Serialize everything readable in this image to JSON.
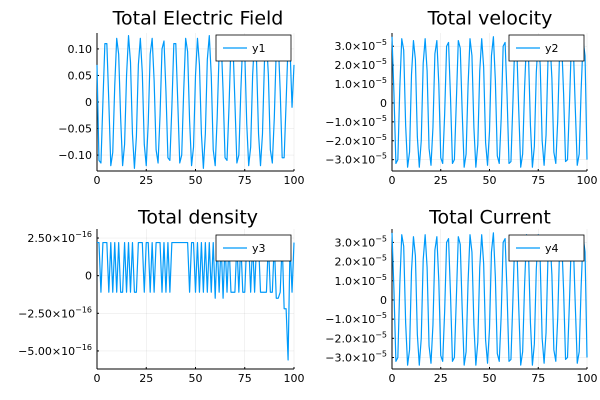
{
  "chart_data": [
    {
      "type": "line",
      "title": "Total Electric Field",
      "xlabel": "",
      "ylabel": "",
      "xlim": [
        0,
        100
      ],
      "ylim": [
        -0.13,
        0.13
      ],
      "xticks": [
        0,
        25,
        50,
        75,
        100
      ],
      "xtick_labels": [
        "0",
        "25",
        "50",
        "75",
        "100"
      ],
      "yticks": [
        0.1,
        0.05,
        0,
        -0.05,
        -0.1
      ],
      "ytick_labels": [
        "0.10",
        "0.05",
        "0",
        "−0.05",
        "−0.10"
      ],
      "grid": true,
      "legend": "top-right",
      "series": [
        {
          "name": "y1",
          "color": "#009AFA",
          "x": [
            0,
            1,
            2,
            3,
            4,
            5,
            6,
            7,
            8,
            9,
            10,
            11,
            12,
            13,
            14,
            15,
            16,
            17,
            18,
            19,
            20,
            21,
            22,
            23,
            24,
            25,
            26,
            27,
            28,
            29,
            30,
            31,
            32,
            33,
            34,
            35,
            36,
            37,
            38,
            39,
            40,
            41,
            42,
            43,
            44,
            45,
            46,
            47,
            48,
            49,
            50,
            51,
            52,
            53,
            54,
            55,
            56,
            57,
            58,
            59,
            60,
            61,
            62,
            63,
            64,
            65,
            66,
            67,
            68,
            69,
            70,
            71,
            72,
            73,
            74,
            75,
            76,
            77,
            78,
            79,
            80,
            81,
            82,
            83,
            84,
            85,
            86,
            87,
            88,
            89,
            90,
            91,
            92,
            93,
            94,
            95,
            96,
            97,
            98,
            99,
            100
          ],
          "values": [
            0.07,
            -0.11,
            -0.115,
            0.0,
            0.11,
            0.11,
            0.0,
            -0.12,
            -0.095,
            0.03,
            0.12,
            0.09,
            -0.03,
            -0.12,
            -0.08,
            0.05,
            0.125,
            0.075,
            -0.06,
            -0.125,
            -0.065,
            0.07,
            0.12,
            0.055,
            -0.08,
            -0.12,
            -0.04,
            0.09,
            0.12,
            0.04,
            -0.09,
            -0.115,
            -0.025,
            0.1,
            0.115,
            0.02,
            -0.105,
            -0.11,
            -0.01,
            0.11,
            0.11,
            0.0,
            -0.115,
            -0.1,
            0.02,
            0.12,
            0.095,
            -0.035,
            -0.12,
            -0.085,
            0.05,
            0.12,
            0.07,
            -0.06,
            -0.125,
            -0.06,
            0.08,
            0.125,
            0.05,
            -0.09,
            -0.12,
            -0.03,
            0.095,
            0.12,
            0.02,
            -0.105,
            -0.11,
            -0.01,
            0.11,
            0.11,
            0.0,
            -0.115,
            -0.1,
            0.02,
            0.115,
            0.095,
            -0.04,
            -0.12,
            -0.085,
            0.05,
            0.12,
            0.075,
            -0.06,
            -0.12,
            -0.06,
            0.075,
            0.12,
            0.05,
            -0.09,
            -0.115,
            -0.03,
            0.1,
            0.115,
            0.02,
            -0.105,
            -0.105,
            0.0,
            0.11,
            0.1,
            -0.01,
            0.07
          ]
        }
      ]
    },
    {
      "type": "line",
      "title": "Total velocity",
      "xlabel": "",
      "ylabel": "",
      "xlim": [
        0,
        100
      ],
      "ylim": [
        -3.6e-05,
        3.7e-05
      ],
      "xticks": [
        0,
        25,
        50,
        75,
        100
      ],
      "xtick_labels": [
        "0",
        "25",
        "50",
        "75",
        "100"
      ],
      "yticks": [
        3e-05,
        2e-05,
        1e-05,
        0,
        -1e-05,
        -2e-05,
        -3e-05
      ],
      "ytick_labels": [
        "3.0×10",
        "2.0×10",
        "1.0×10",
        "0",
        "−1.0×10",
        "−2.0×10",
        "−3.0×10"
      ],
      "ytick_exponent": "−5",
      "grid": true,
      "legend": "top-right",
      "series": [
        {
          "name": "y2",
          "color": "#009AFA",
          "x": [
            0,
            1,
            2,
            3,
            4,
            5,
            6,
            7,
            8,
            9,
            10,
            11,
            12,
            13,
            14,
            15,
            16,
            17,
            18,
            19,
            20,
            21,
            22,
            23,
            24,
            25,
            26,
            27,
            28,
            29,
            30,
            31,
            32,
            33,
            34,
            35,
            36,
            37,
            38,
            39,
            40,
            41,
            42,
            43,
            44,
            45,
            46,
            47,
            48,
            49,
            50,
            51,
            52,
            53,
            54,
            55,
            56,
            57,
            58,
            59,
            60,
            61,
            62,
            63,
            64,
            65,
            66,
            67,
            68,
            69,
            70,
            71,
            72,
            73,
            74,
            75,
            76,
            77,
            78,
            79,
            80,
            81,
            82,
            83,
            84,
            85,
            86,
            87,
            88,
            89,
            90,
            91,
            92,
            93,
            94,
            95,
            96,
            97,
            98,
            99,
            100
          ],
          "values": [
            3.5e-05,
            5e-06,
            -3.2e-05,
            -3e-05,
            8e-06,
            3.4e-05,
            2.8e-05,
            -1.2e-05,
            -3.4e-05,
            -2.6e-05,
            1.5e-05,
            3.3e-05,
            2.3e-05,
            -1.8e-05,
            -3.4e-05,
            -2e-05,
            2.1e-05,
            3.4e-05,
            1.7e-05,
            -2.4e-05,
            -3.3e-05,
            -1.3e-05,
            2.6e-05,
            3.3e-05,
            1e-05,
            -2.9e-05,
            -3.2e-05,
            -6e-06,
            3e-05,
            3.2e-05,
            3e-06,
            -3.2e-05,
            -3e-05,
            1e-06,
            3.3e-05,
            2.9e-05,
            -5e-06,
            -3.4e-05,
            -2.7e-05,
            9e-06,
            3.4e-05,
            2.5e-05,
            -1.3e-05,
            -3.4e-05,
            -2.2e-05,
            1.7e-05,
            3.4e-05,
            1.9e-05,
            -2.1e-05,
            -3.3e-05,
            -1.5e-05,
            2.5e-05,
            3.5e-05,
            1.2e-05,
            -2.8e-05,
            -3.2e-05,
            -8e-06,
            3e-05,
            3.2e-05,
            4e-06,
            -3.2e-05,
            -3.1e-05,
            0.0,
            3.3e-05,
            2.9e-05,
            -4e-06,
            -3.4e-05,
            -2.7e-05,
            8e-06,
            3.4e-05,
            2.5e-05,
            -1.2e-05,
            -3.4e-05,
            -2.3e-05,
            1.6e-05,
            3.4e-05,
            2e-05,
            -2e-05,
            -3.3e-05,
            -1.7e-05,
            2.3e-05,
            3.3e-05,
            1.3e-05,
            -2.6e-05,
            -3.2e-05,
            -9e-06,
            2.9e-05,
            3.2e-05,
            5e-06,
            -3.1e-05,
            -3e-05,
            -1e-06,
            3.2e-05,
            2.9e-05,
            -3e-06,
            -3.3e-05,
            -2.7e-05,
            7e-06,
            3.3e-05,
            2.5e-05,
            -3e-05
          ]
        }
      ]
    },
    {
      "type": "line",
      "title": "Total density",
      "xlabel": "",
      "ylabel": "",
      "xlim": [
        0,
        100
      ],
      "ylim": [
        -6.2e-16,
        3.1e-16
      ],
      "xticks": [
        0,
        25,
        50,
        75,
        100
      ],
      "xtick_labels": [
        "0",
        "25",
        "50",
        "75",
        "100"
      ],
      "yticks": [
        2.5e-16,
        0,
        -2.5e-16,
        -5e-16
      ],
      "ytick_labels": [
        "2.50×10",
        "0",
        "−2.50×10",
        "−5.00×10"
      ],
      "ytick_exponent": "−16",
      "grid": true,
      "legend": "top-right",
      "series": [
        {
          "name": "y3",
          "color": "#009AFA",
          "x": [
            0,
            1,
            2,
            3,
            4,
            5,
            6,
            7,
            8,
            9,
            10,
            11,
            12,
            13,
            14,
            15,
            16,
            17,
            18,
            19,
            20,
            21,
            22,
            23,
            24,
            25,
            26,
            27,
            28,
            29,
            30,
            31,
            32,
            33,
            34,
            35,
            36,
            37,
            38,
            39,
            40,
            41,
            42,
            43,
            44,
            45,
            46,
            47,
            48,
            49,
            50,
            51,
            52,
            53,
            54,
            55,
            56,
            57,
            58,
            59,
            60,
            61,
            62,
            63,
            64,
            65,
            66,
            67,
            68,
            69,
            70,
            71,
            72,
            73,
            74,
            75,
            76,
            77,
            78,
            79,
            80,
            81,
            82,
            83,
            84,
            85,
            86,
            87,
            88,
            89,
            90,
            91,
            92,
            93,
            94,
            95,
            96,
            97,
            98,
            99,
            100
          ],
          "values": [
            2.2e-16,
            2.2e-16,
            -1.1e-16,
            2.2e-16,
            2.2e-16,
            2.2e-16,
            -1.1e-16,
            2.2e-16,
            -1.1e-16,
            2.2e-16,
            -1.1e-16,
            2.2e-16,
            -1.1e-16,
            -1.1e-16,
            2.2e-16,
            -1.1e-16,
            2.2e-16,
            -1.1e-16,
            2.2e-16,
            -1.1e-16,
            -1.1e-16,
            2.2e-16,
            2.2e-16,
            2.2e-16,
            -1.1e-16,
            2.2e-16,
            2.2e-16,
            -1.1e-16,
            2.2e-16,
            -1.1e-16,
            2.2e-16,
            2.2e-16,
            2.2e-16,
            -1.1e-16,
            2.2e-16,
            -1.1e-16,
            2.2e-16,
            -1.1e-16,
            2.2e-16,
            2.2e-16,
            2.2e-16,
            2.2e-16,
            2.2e-16,
            2.2e-16,
            2.2e-16,
            2.2e-16,
            2.2e-16,
            -1.1e-16,
            2.2e-16,
            2.2e-16,
            -1.1e-16,
            2.2e-16,
            -1.1e-16,
            2.2e-16,
            -1.1e-16,
            2.2e-16,
            -1.1e-16,
            2.2e-16,
            -1.1e-16,
            2.2e-16,
            -1.5e-16,
            2.2e-16,
            -1.1e-16,
            2.2e-16,
            -1.5e-16,
            2.2e-16,
            -1.1e-16,
            2.2e-16,
            -1.1e-16,
            -1.1e-16,
            -1.1e-16,
            2.2e-16,
            -1.1e-16,
            2.2e-16,
            -1.1e-16,
            -1.1e-16,
            2.2e-16,
            2.2e-16,
            -1.1e-16,
            2.2e-16,
            -1.1e-16,
            2.2e-16,
            2.2e-16,
            -1.1e-16,
            -1.1e-16,
            -1.1e-16,
            -1.1e-16,
            2.2e-16,
            -1.1e-16,
            -1.1e-16,
            2.2e-16,
            -1.5e-16,
            -1.5e-16,
            -1.1e-16,
            2.2e-16,
            -2.2e-16,
            -2.2e-16,
            -5.6e-16,
            2.2e-16,
            -1.1e-16,
            2.2e-16
          ]
        }
      ]
    },
    {
      "type": "line",
      "title": "Total Current",
      "xlabel": "",
      "ylabel": "",
      "xlim": [
        0,
        100
      ],
      "ylim": [
        -3.6e-05,
        3.7e-05
      ],
      "xticks": [
        0,
        25,
        50,
        75,
        100
      ],
      "xtick_labels": [
        "0",
        "25",
        "50",
        "75",
        "100"
      ],
      "yticks": [
        3e-05,
        2e-05,
        1e-05,
        0,
        -1e-05,
        -2e-05,
        -3e-05
      ],
      "ytick_labels": [
        "3.0×10",
        "2.0×10",
        "1.0×10",
        "0",
        "−1.0×10",
        "−2.0×10",
        "−3.0×10"
      ],
      "ytick_exponent": "−5",
      "grid": true,
      "legend": "top-right",
      "series": [
        {
          "name": "y4",
          "color": "#009AFA",
          "x": [
            0,
            1,
            2,
            3,
            4,
            5,
            6,
            7,
            8,
            9,
            10,
            11,
            12,
            13,
            14,
            15,
            16,
            17,
            18,
            19,
            20,
            21,
            22,
            23,
            24,
            25,
            26,
            27,
            28,
            29,
            30,
            31,
            32,
            33,
            34,
            35,
            36,
            37,
            38,
            39,
            40,
            41,
            42,
            43,
            44,
            45,
            46,
            47,
            48,
            49,
            50,
            51,
            52,
            53,
            54,
            55,
            56,
            57,
            58,
            59,
            60,
            61,
            62,
            63,
            64,
            65,
            66,
            67,
            68,
            69,
            70,
            71,
            72,
            73,
            74,
            75,
            76,
            77,
            78,
            79,
            80,
            81,
            82,
            83,
            84,
            85,
            86,
            87,
            88,
            89,
            90,
            91,
            92,
            93,
            94,
            95,
            96,
            97,
            98,
            99,
            100
          ],
          "values": [
            3.5e-05,
            5e-06,
            -3.2e-05,
            -3e-05,
            8e-06,
            3.4e-05,
            2.8e-05,
            -1.2e-05,
            -3.4e-05,
            -2.6e-05,
            1.5e-05,
            3.3e-05,
            2.3e-05,
            -1.8e-05,
            -3.4e-05,
            -2e-05,
            2.1e-05,
            3.4e-05,
            1.7e-05,
            -2.4e-05,
            -3.3e-05,
            -1.3e-05,
            2.6e-05,
            3.3e-05,
            1e-05,
            -2.9e-05,
            -3.2e-05,
            -6e-06,
            3e-05,
            3.2e-05,
            3e-06,
            -3.2e-05,
            -3e-05,
            1e-06,
            3.3e-05,
            2.9e-05,
            -5e-06,
            -3.4e-05,
            -2.7e-05,
            9e-06,
            3.4e-05,
            2.5e-05,
            -1.3e-05,
            -3.4e-05,
            -2.2e-05,
            1.7e-05,
            3.4e-05,
            1.9e-05,
            -2.1e-05,
            -3.3e-05,
            -1.5e-05,
            2.5e-05,
            3.5e-05,
            1.2e-05,
            -2.8e-05,
            -3.2e-05,
            -8e-06,
            3e-05,
            3.2e-05,
            4e-06,
            -3.2e-05,
            -3.1e-05,
            0.0,
            3.3e-05,
            2.9e-05,
            -4e-06,
            -3.4e-05,
            -2.7e-05,
            8e-06,
            3.4e-05,
            2.5e-05,
            -1.2e-05,
            -3.4e-05,
            -2.3e-05,
            1.6e-05,
            3.4e-05,
            2e-05,
            -2e-05,
            -3.3e-05,
            -1.7e-05,
            2.3e-05,
            3.3e-05,
            1.3e-05,
            -2.6e-05,
            -3.2e-05,
            -9e-06,
            2.9e-05,
            3.2e-05,
            5e-06,
            -3.1e-05,
            -3e-05,
            -1e-06,
            3.2e-05,
            2.9e-05,
            -3e-06,
            -3.3e-05,
            -2.7e-05,
            7e-06,
            3.3e-05,
            2.5e-05,
            -3e-05
          ]
        }
      ]
    }
  ]
}
